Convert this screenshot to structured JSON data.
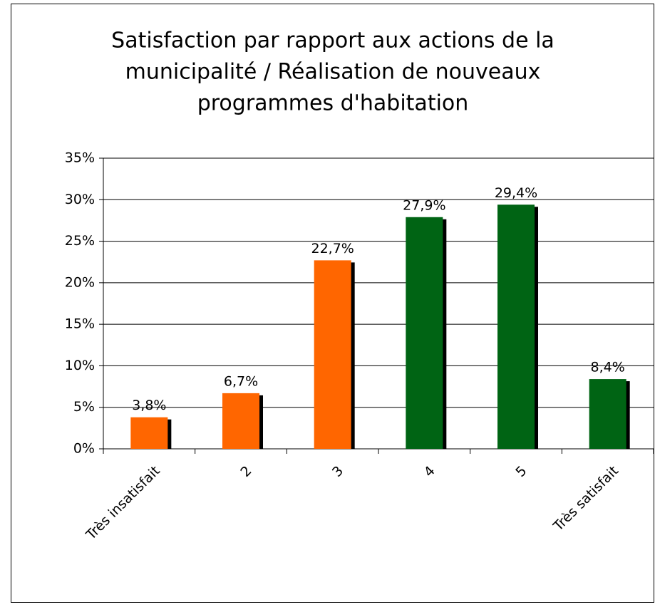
{
  "chart_data": {
    "type": "bar",
    "title": [
      "Satisfaction par rapport aux actions de la",
      "municipalité / Réalisation de nouveaux",
      "programmes d'habitation"
    ],
    "categories": [
      "Très  insatisfait",
      "2",
      "3",
      "4",
      "5",
      "Très satisfait"
    ],
    "values": [
      3.8,
      6.7,
      22.7,
      27.9,
      29.4,
      8.4
    ],
    "value_labels": [
      "3,8%",
      "6,7%",
      "22,7%",
      "27,9%",
      "29,4%",
      "8,4%"
    ],
    "colors": [
      "#ff6600",
      "#ff6600",
      "#ff6600",
      "#006414",
      "#006414",
      "#006414"
    ],
    "ylim": [
      0,
      35
    ],
    "yticks": [
      {
        "value": 0,
        "label": "0%"
      },
      {
        "value": 5,
        "label": "5%"
      },
      {
        "value": 10,
        "label": "10%"
      },
      {
        "value": 15,
        "label": "15%"
      },
      {
        "value": 20,
        "label": "20%"
      },
      {
        "value": 25,
        "label": "25%"
      },
      {
        "value": 30,
        "label": "30%"
      },
      {
        "value": 35,
        "label": "35%"
      }
    ],
    "grid": true
  }
}
